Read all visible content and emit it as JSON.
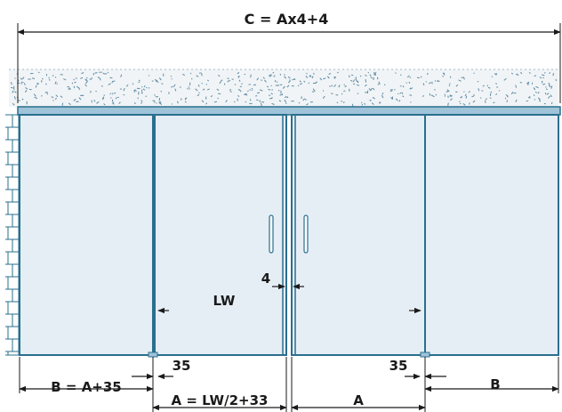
{
  "labels": {
    "total_width": "C = Ax4+4",
    "side_width": "B = A+35",
    "door_width": "A = LW/2+33",
    "door_width_short": "A",
    "side_width_short": "B",
    "overlap_left": "35",
    "overlap_right": "35",
    "gap": "4",
    "clear_opening": "LW"
  },
  "colors": {
    "frame": "#2a6f8e",
    "glass": "#e6eef5",
    "rail": "#9fc3d8",
    "speckle": "#5f8ba5",
    "ceiling_bg": "#f1f4f6",
    "dim_line": "#1a1a1a"
  }
}
